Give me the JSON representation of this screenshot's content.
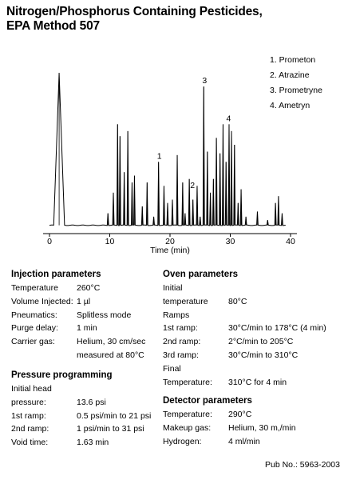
{
  "title_line1": "Nitrogen/Phosphorus Containing Pesticides,",
  "title_line2": "EPA Method 507",
  "legend": [
    "1. Prometon",
    "2. Atrazine",
    "3. Prometryne",
    "4. Ametryn"
  ],
  "chart_data": {
    "type": "line",
    "xlabel": "Time (min)",
    "xlim": [
      0,
      40
    ],
    "xticks": [
      "0",
      "10",
      "20",
      "30",
      "40"
    ],
    "ylim": [
      0,
      100
    ],
    "baseline": 3,
    "peaks": [
      {
        "x": 1.6,
        "y": 92,
        "w": 0.9
      },
      {
        "x": 9.7,
        "y": 10,
        "w": 0.12
      },
      {
        "x": 10.6,
        "y": 22,
        "w": 0.12
      },
      {
        "x": 11.3,
        "y": 62,
        "w": 0.12
      },
      {
        "x": 11.7,
        "y": 55,
        "w": 0.12
      },
      {
        "x": 12.4,
        "y": 34,
        "w": 0.12
      },
      {
        "x": 13.0,
        "y": 58,
        "w": 0.12
      },
      {
        "x": 13.7,
        "y": 28,
        "w": 0.12
      },
      {
        "x": 14.1,
        "y": 32,
        "w": 0.12
      },
      {
        "x": 15.4,
        "y": 14,
        "w": 0.12
      },
      {
        "x": 16.2,
        "y": 28,
        "w": 0.12
      },
      {
        "x": 17.3,
        "y": 8,
        "w": 0.12
      },
      {
        "x": 18.1,
        "y": 40,
        "w": 0.12
      },
      {
        "x": 19.0,
        "y": 26,
        "w": 0.12
      },
      {
        "x": 19.6,
        "y": 16,
        "w": 0.12
      },
      {
        "x": 20.4,
        "y": 18,
        "w": 0.12
      },
      {
        "x": 21.2,
        "y": 44,
        "w": 0.12
      },
      {
        "x": 22.1,
        "y": 28,
        "w": 0.12
      },
      {
        "x": 22.5,
        "y": 10,
        "w": 0.12
      },
      {
        "x": 23.2,
        "y": 30,
        "w": 0.12
      },
      {
        "x": 23.8,
        "y": 18,
        "w": 0.12
      },
      {
        "x": 24.5,
        "y": 26,
        "w": 0.12
      },
      {
        "x": 25.0,
        "y": 8,
        "w": 0.12
      },
      {
        "x": 25.6,
        "y": 84,
        "w": 0.12
      },
      {
        "x": 26.2,
        "y": 46,
        "w": 0.12
      },
      {
        "x": 26.7,
        "y": 22,
        "w": 0.12
      },
      {
        "x": 27.2,
        "y": 30,
        "w": 0.12
      },
      {
        "x": 27.7,
        "y": 54,
        "w": 0.12
      },
      {
        "x": 28.3,
        "y": 45,
        "w": 0.12
      },
      {
        "x": 28.8,
        "y": 62,
        "w": 0.12
      },
      {
        "x": 29.3,
        "y": 40,
        "w": 0.12
      },
      {
        "x": 29.8,
        "y": 62,
        "w": 0.12
      },
      {
        "x": 30.2,
        "y": 58,
        "w": 0.12
      },
      {
        "x": 30.7,
        "y": 50,
        "w": 0.12
      },
      {
        "x": 31.3,
        "y": 16,
        "w": 0.12
      },
      {
        "x": 31.8,
        "y": 24,
        "w": 0.12
      },
      {
        "x": 32.6,
        "y": 8,
        "w": 0.12
      },
      {
        "x": 34.5,
        "y": 11,
        "w": 0.12
      },
      {
        "x": 36.2,
        "y": 6,
        "w": 0.12
      },
      {
        "x": 37.5,
        "y": 16,
        "w": 0.12
      },
      {
        "x": 38.0,
        "y": 20,
        "w": 0.12
      },
      {
        "x": 38.6,
        "y": 10,
        "w": 0.12
      }
    ],
    "peak_labels": [
      {
        "label": "1",
        "x": 18.1,
        "y": 40
      },
      {
        "label": "2",
        "x": 23.6,
        "y": 23
      },
      {
        "label": "3",
        "x": 25.6,
        "y": 84
      },
      {
        "label": "4",
        "x": 29.6,
        "y": 62
      }
    ]
  },
  "injection": {
    "title": "Injection parameters",
    "rows": [
      {
        "label": "Temperature",
        "value": "260°C"
      },
      {
        "label": "Volume Injected:",
        "value": "1 µl"
      },
      {
        "label": "Pneumatics:",
        "value": "Splitless mode"
      },
      {
        "label": "Purge delay:",
        "value": "1 min"
      },
      {
        "label": "Carrier gas:",
        "value": "Helium, 30 cm/sec"
      },
      {
        "label": "",
        "value": "measured at 80°C"
      }
    ]
  },
  "pressure": {
    "title": "Pressure programming",
    "rows": [
      {
        "label": "Initial head",
        "value": ""
      },
      {
        "label": "pressure:",
        "value": "13.6 psi"
      },
      {
        "label": "1st ramp:",
        "value": "0.5 psi/min to 21 psi"
      },
      {
        "label": "2nd ramp:",
        "value": "1 psi/min to 31 psi"
      },
      {
        "label": "Void time:",
        "value": "1.63 min"
      }
    ]
  },
  "oven": {
    "title": "Oven parameters",
    "rows": [
      {
        "label": "Initial",
        "value": ""
      },
      {
        "label": "temperature",
        "value": "80°C"
      },
      {
        "label": "Ramps",
        "value": ""
      },
      {
        "label": "1st ramp:",
        "value": "30°C/min to 178°C (4 min)"
      },
      {
        "label": "2nd ramp:",
        "value": "2°C/min to 205°C"
      },
      {
        "label": "3rd ramp:",
        "value": "30°C/min to 310°C"
      },
      {
        "label": "Final",
        "value": ""
      },
      {
        "label": "Temperature:",
        "value": "310°C for 4 min"
      }
    ]
  },
  "detector": {
    "title": "Detector parameters",
    "rows": [
      {
        "label": "Temperature:",
        "value": "290°C"
      },
      {
        "label": "Makeup gas:",
        "value": "Helium, 30 m,/min"
      },
      {
        "label": "Hydrogen:",
        "value": "4 ml/min"
      }
    ]
  },
  "pub_no": "Pub No.: 5963-2003"
}
